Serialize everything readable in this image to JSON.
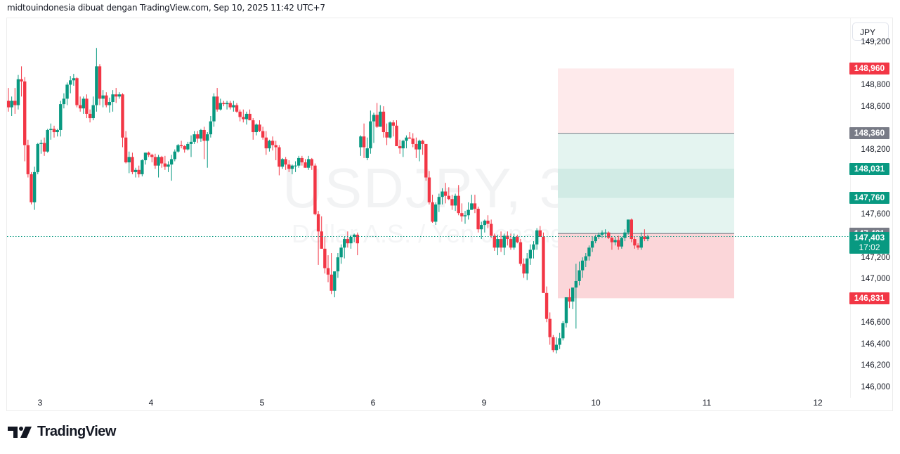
{
  "header": {
    "text": "midtouindonesia dibuat dengan TradingView.com, Sep 10, 2025 11:42 UTC+7"
  },
  "symbol": {
    "watermark_main": "USDJPY, 30",
    "watermark_sub": "Dollar A.S. / Yen Jepang"
  },
  "currency_button": "JPY",
  "colors": {
    "up": "#089981",
    "down": "#f23645",
    "stop_zone": "#fbd6d9",
    "stop_zone_far": "#feeaeb",
    "target_zone": "#e4f4f0",
    "target_zone_mid": "#d1ebe5",
    "entry_line": "#787b86",
    "last_price": "#089981"
  },
  "price_axis": {
    "ticks": [
      "149,200",
      "148,800",
      "148,600",
      "148,200",
      "147,600",
      "147,200",
      "147,000",
      "146,600",
      "146,400",
      "146,200",
      "146,000"
    ],
    "badges": [
      {
        "label": "148,960",
        "color": "#f23645"
      },
      {
        "label": "148,360",
        "color": "#787b86"
      },
      {
        "label": "148,031",
        "color": "#089981"
      },
      {
        "label": "147,760",
        "color": "#089981"
      },
      {
        "label": "147,431",
        "color": "#787b86"
      },
      {
        "label": "147,403",
        "sub": "17:02",
        "color": "#089981"
      },
      {
        "label": "146,831",
        "color": "#f23645"
      }
    ]
  },
  "time_axis": {
    "ticks": [
      "3",
      "4",
      "5",
      "6",
      "9",
      "10",
      "11",
      "12"
    ]
  },
  "footer": {
    "brand": "TradingView"
  },
  "chart_data": {
    "type": "candlestick",
    "title": "USDJPY, 30",
    "subtitle": "Dollar A.S. / Yen Jepang",
    "xlabel": "",
    "ylabel": "JPY",
    "x_ticks": [
      "3",
      "4",
      "5",
      "6",
      "9",
      "10",
      "11",
      "12"
    ],
    "ylim": [
      145900,
      149250
    ],
    "last_price": 147403,
    "countdown": "17:02",
    "annotations": {
      "position_tool": {
        "type": "short/long risk-reward",
        "entry": 147431,
        "stop_far": 148960,
        "level_1": 148360,
        "target_zone_top": 148031,
        "target_zone_bottom": 147760,
        "stop": 146831
      }
    },
    "candles": [
      [
        148660,
        148780,
        148560,
        148600
      ],
      [
        148600,
        148700,
        148520,
        148660
      ],
      [
        148660,
        148780,
        148540,
        148620
      ],
      [
        148620,
        148900,
        148580,
        148860
      ],
      [
        148860,
        148980,
        148700,
        148840
      ],
      [
        148840,
        148880,
        148100,
        148250
      ],
      [
        148250,
        148300,
        147950,
        147980
      ],
      [
        147980,
        148000,
        147700,
        147720
      ],
      [
        147720,
        148050,
        147650,
        148000
      ],
      [
        148000,
        148270,
        147980,
        148260
      ],
      [
        148260,
        148300,
        148170,
        148270
      ],
      [
        148270,
        148320,
        148150,
        148190
      ],
      [
        148190,
        148400,
        148180,
        148390
      ],
      [
        148390,
        148450,
        148300,
        148400
      ],
      [
        148400,
        148430,
        148320,
        148370
      ],
      [
        148370,
        148400,
        148330,
        148390
      ],
      [
        148390,
        148660,
        148330,
        148630
      ],
      [
        148630,
        148730,
        148590,
        148680
      ],
      [
        148680,
        148830,
        148620,
        148810
      ],
      [
        148810,
        148890,
        148730,
        148850
      ],
      [
        148850,
        148910,
        148800,
        148870
      ],
      [
        148870,
        148880,
        148600,
        148620
      ],
      [
        148620,
        148700,
        148560,
        148590
      ],
      [
        148590,
        148700,
        148540,
        148680
      ],
      [
        148680,
        148720,
        148500,
        148540
      ],
      [
        148540,
        148580,
        148460,
        148500
      ],
      [
        148500,
        148700,
        148480,
        148620
      ],
      [
        148620,
        149150,
        148560,
        148980
      ],
      [
        148980,
        149000,
        148620,
        148680
      ],
      [
        148680,
        148760,
        148600,
        148710
      ],
      [
        148710,
        148740,
        148600,
        148620
      ],
      [
        148620,
        148690,
        148550,
        148650
      ],
      [
        148650,
        148760,
        148560,
        148720
      ],
      [
        148720,
        148780,
        148640,
        148700
      ],
      [
        148700,
        148740,
        148680,
        148720
      ],
      [
        148720,
        148730,
        148230,
        148320
      ],
      [
        148320,
        148380,
        148080,
        148090
      ],
      [
        148090,
        148190,
        147990,
        148140
      ],
      [
        148140,
        148180,
        147980,
        148000
      ],
      [
        148000,
        148040,
        147950,
        148020
      ],
      [
        148020,
        148060,
        147950,
        147980
      ],
      [
        147980,
        148120,
        147960,
        148110
      ],
      [
        148110,
        148180,
        148070,
        148180
      ],
      [
        148180,
        148190,
        148140,
        148160
      ],
      [
        148160,
        148170,
        148090,
        148140
      ],
      [
        148140,
        148170,
        148030,
        148060
      ],
      [
        148060,
        148160,
        147950,
        148140
      ],
      [
        148140,
        148150,
        148040,
        148080
      ],
      [
        148080,
        148150,
        148020,
        148050
      ],
      [
        148050,
        148100,
        148000,
        148070
      ],
      [
        148070,
        148160,
        147920,
        148120
      ],
      [
        148120,
        148210,
        148100,
        148190
      ],
      [
        148190,
        148260,
        148180,
        148250
      ],
      [
        148250,
        148290,
        148220,
        148240
      ],
      [
        148240,
        148250,
        148180,
        148210
      ],
      [
        148210,
        148280,
        148200,
        148260
      ],
      [
        148260,
        148340,
        148140,
        148280
      ],
      [
        148280,
        148380,
        148260,
        148350
      ],
      [
        148350,
        148380,
        148270,
        148310
      ],
      [
        148310,
        148400,
        148280,
        148390
      ],
      [
        148390,
        148420,
        148120,
        148290
      ],
      [
        148290,
        148370,
        148040,
        148350
      ],
      [
        148350,
        148520,
        148320,
        148470
      ],
      [
        148470,
        148730,
        148420,
        148700
      ],
      [
        148700,
        148780,
        148560,
        148580
      ],
      [
        148580,
        148680,
        148570,
        148640
      ],
      [
        148640,
        148660,
        148610,
        148630
      ],
      [
        148630,
        148660,
        148580,
        148640
      ],
      [
        148640,
        148660,
        148580,
        148600
      ],
      [
        148600,
        148660,
        148560,
        148620
      ],
      [
        148620,
        148640,
        148550,
        148560
      ],
      [
        148560,
        148580,
        148470,
        148510
      ],
      [
        148510,
        148580,
        148460,
        148490
      ],
      [
        148490,
        148560,
        148440,
        148540
      ],
      [
        148540,
        148580,
        148480,
        148480
      ],
      [
        148480,
        148500,
        148300,
        148370
      ],
      [
        148370,
        148450,
        148340,
        148440
      ],
      [
        148440,
        148480,
        148370,
        148380
      ],
      [
        148380,
        148420,
        148300,
        148320
      ],
      [
        148320,
        148380,
        148160,
        148220
      ],
      [
        148220,
        148300,
        148190,
        148290
      ],
      [
        148290,
        148330,
        148200,
        148250
      ],
      [
        148250,
        148290,
        148110,
        148230
      ],
      [
        148230,
        148250,
        147970,
        148050
      ],
      [
        148050,
        148130,
        148030,
        148120
      ],
      [
        148120,
        148140,
        148020,
        148070
      ],
      [
        148070,
        148110,
        148000,
        148030
      ],
      [
        148030,
        148070,
        147980,
        148060
      ],
      [
        148060,
        148100,
        148000,
        148060
      ],
      [
        148060,
        148150,
        148040,
        148130
      ],
      [
        148130,
        148150,
        148060,
        148090
      ],
      [
        148090,
        148120,
        148040,
        148040
      ],
      [
        148040,
        148150,
        148020,
        148120
      ],
      [
        148120,
        148130,
        148020,
        148060
      ],
      [
        148060,
        148080,
        147600,
        147610
      ],
      [
        147610,
        147640,
        147140,
        147450
      ],
      [
        147450,
        147590,
        147290,
        147290
      ],
      [
        147290,
        147400,
        147060,
        147110
      ],
      [
        147110,
        147230,
        146980,
        147050
      ],
      [
        147050,
        147250,
        146870,
        146900
      ],
      [
        146900,
        147050,
        146840,
        147080
      ],
      [
        147080,
        147250,
        147020,
        147210
      ],
      [
        147210,
        147330,
        147150,
        147300
      ],
      [
        147300,
        147400,
        147200,
        147380
      ],
      [
        147380,
        147450,
        147300,
        147340
      ],
      [
        147340,
        147420,
        147290,
        147400
      ],
      [
        147400,
        147430,
        147350,
        147420
      ],
      [
        147420,
        147440,
        147230,
        147340
      ],
      [
        148230,
        148340,
        148150,
        148330
      ],
      [
        148330,
        148450,
        148130,
        148230
      ],
      [
        148130,
        148320,
        148110,
        148220
      ],
      [
        148220,
        148570,
        148170,
        148470
      ],
      [
        148470,
        148550,
        148270,
        148530
      ],
      [
        148530,
        148640,
        148410,
        148420
      ],
      [
        148420,
        148620,
        148420,
        148560
      ],
      [
        148560,
        148610,
        148320,
        148370
      ],
      [
        148370,
        148450,
        148250,
        148320
      ],
      [
        148320,
        148470,
        148310,
        148460
      ],
      [
        148460,
        148480,
        148330,
        148430
      ],
      [
        148430,
        148480,
        148240,
        148240
      ],
      [
        148240,
        148300,
        148170,
        148220
      ],
      [
        148220,
        148300,
        148140,
        148290
      ],
      [
        148290,
        148340,
        148220,
        148320
      ],
      [
        148320,
        148370,
        148310,
        148310
      ],
      [
        148310,
        148360,
        148230,
        148260
      ],
      [
        148260,
        148320,
        148130,
        148210
      ],
      [
        148210,
        148300,
        148100,
        148290
      ],
      [
        148290,
        148300,
        148160,
        148260
      ],
      [
        148260,
        148260,
        147920,
        147950
      ],
      [
        147950,
        148010,
        147700,
        147720
      ],
      [
        147720,
        147790,
        147530,
        147540
      ],
      [
        147540,
        147720,
        147510,
        147700
      ],
      [
        147700,
        147800,
        147630,
        147770
      ],
      [
        147770,
        147850,
        147700,
        147820
      ],
      [
        147820,
        147900,
        147710,
        147780
      ],
      [
        147780,
        147860,
        147740,
        147750
      ],
      [
        147750,
        147790,
        147650,
        147690
      ],
      [
        147690,
        147800,
        147640,
        147780
      ],
      [
        147780,
        147880,
        147600,
        147620
      ],
      [
        147620,
        147710,
        147540,
        147590
      ],
      [
        147590,
        147640,
        147520,
        147600
      ],
      [
        147600,
        147720,
        147560,
        147650
      ],
      [
        147650,
        147790,
        147650,
        147710
      ],
      [
        147710,
        147790,
        147620,
        147660
      ],
      [
        147660,
        147680,
        147440,
        147470
      ],
      [
        147470,
        147540,
        147380,
        147510
      ],
      [
        147510,
        147560,
        147440,
        147550
      ],
      [
        147550,
        147600,
        147480,
        147520
      ],
      [
        147520,
        147560,
        147390,
        147410
      ],
      [
        147410,
        147430,
        147270,
        147300
      ],
      [
        147300,
        147420,
        147230,
        147380
      ],
      [
        147380,
        147450,
        147260,
        147300
      ],
      [
        147300,
        147430,
        147230,
        147410
      ],
      [
        147410,
        147450,
        147320,
        147380
      ],
      [
        147380,
        147430,
        147280,
        147300
      ],
      [
        147300,
        147430,
        147280,
        147400
      ],
      [
        147400,
        147420,
        147340,
        147350
      ],
      [
        147350,
        147380,
        147130,
        147150
      ],
      [
        147150,
        147200,
        147020,
        147060
      ],
      [
        147060,
        147250,
        147000,
        147200
      ],
      [
        147200,
        147330,
        147140,
        147280
      ],
      [
        147280,
        147360,
        147200,
        147330
      ],
      [
        147330,
        147480,
        147280,
        147460
      ],
      [
        147460,
        147500,
        147400,
        147400
      ],
      [
        147400,
        147440,
        146960,
        146880
      ],
      [
        146880,
        146940,
        146610,
        146640
      ],
      [
        146640,
        146700,
        146400,
        146470
      ],
      [
        146470,
        146490,
        146330,
        146350
      ],
      [
        146350,
        146470,
        146320,
        146400
      ],
      [
        146400,
        146510,
        146360,
        146460
      ],
      [
        146460,
        146620,
        146440,
        146600
      ],
      [
        146600,
        146840,
        146560,
        146840
      ],
      [
        146840,
        146920,
        146740,
        146800
      ],
      [
        146800,
        146920,
        146730,
        146930
      ],
      [
        146930,
        147150,
        146550,
        146990
      ],
      [
        146990,
        147170,
        146950,
        147090
      ],
      [
        147090,
        147210,
        147020,
        147180
      ],
      [
        147180,
        147250,
        147120,
        147220
      ],
      [
        147220,
        147320,
        147180,
        147300
      ],
      [
        147300,
        147400,
        147260,
        147360
      ],
      [
        147360,
        147420,
        147340,
        147400
      ],
      [
        147400,
        147440,
        147380,
        147420
      ],
      [
        147420,
        147460,
        147390,
        147440
      ],
      [
        147440,
        147470,
        147390,
        147440
      ],
      [
        147440,
        147450,
        147380,
        147390
      ],
      [
        147390,
        147400,
        147280,
        147350
      ],
      [
        147350,
        147400,
        147320,
        147370
      ],
      [
        147370,
        147410,
        147280,
        147310
      ],
      [
        147310,
        147400,
        147290,
        147390
      ],
      [
        147390,
        147470,
        147360,
        147440
      ],
      [
        147440,
        147560,
        147420,
        147560
      ],
      [
        147560,
        147570,
        147350,
        147380
      ],
      [
        147380,
        147400,
        147290,
        147320
      ],
      [
        147320,
        147340,
        147280,
        147300
      ],
      [
        147300,
        147440,
        147280,
        147400
      ],
      [
        147400,
        147470,
        147360,
        147380
      ],
      [
        147380,
        147420,
        147360,
        147403
      ]
    ]
  }
}
